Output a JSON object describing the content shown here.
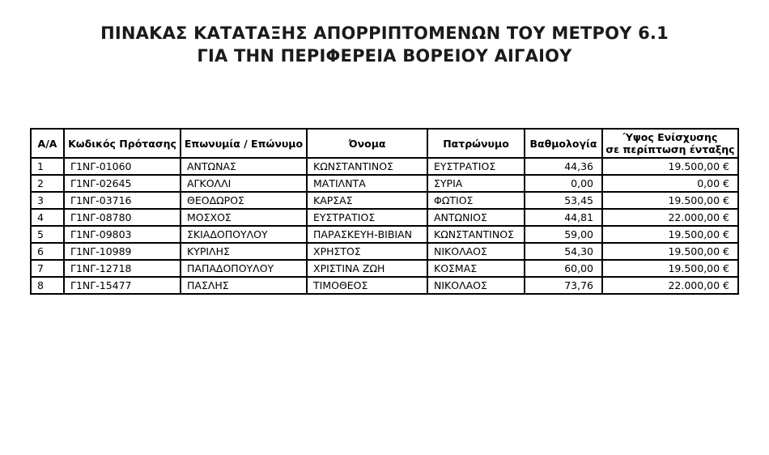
{
  "document": {
    "title_line1": "ΠΙΝΑΚΑΣ ΚΑΤΑΤΑΞΗΣ ΑΠΟΡΡΙΠΤΟΜΕΝΩΝ ΤΟΥ ΜΕΤΡΟΥ 6.1",
    "title_line2": "ΓΙΑ ΤΗΝ ΠΕΡΙΦΕΡΕΙΑ ΒΟΡΕΙΟΥ ΑΙΓΑΙΟΥ"
  },
  "table": {
    "headers": {
      "aa": "Α/Α",
      "code": "Κωδικός Πρότασης",
      "surname": "Επωνυμία / Επώνυμο",
      "name": "Όνομα",
      "patronym": "Πατρώνυμο",
      "score": "Βαθμολογία",
      "amount_line1": "Ύψος Ενίσχυσης",
      "amount_line2": "σε περίπτωση ένταξης"
    },
    "rows": [
      {
        "aa": "1",
        "code": "Γ1ΝΓ-01060",
        "surname": "ΑΝΤΩΝΑΣ",
        "name": "ΚΩΝΣΤΑΝΤΙΝΟΣ",
        "patronym": "ΕΥΣΤΡΑΤΙΟΣ",
        "score": "44,36",
        "amount": "19.500,00 €"
      },
      {
        "aa": "2",
        "code": "Γ1ΝΓ-02645",
        "surname": "ΑΓΚΟΛΛΙ",
        "name": "ΜΑΤΙΛΝΤΑ",
        "patronym": "ΣΥΡΙΑ",
        "score": "0,00",
        "amount": "0,00 €"
      },
      {
        "aa": "3",
        "code": "Γ1ΝΓ-03716",
        "surname": "ΘΕΟΔΩΡΟΣ",
        "name": "ΚΑΡΣΑΣ",
        "patronym": "ΦΩΤΙΟΣ",
        "score": "53,45",
        "amount": "19.500,00 €"
      },
      {
        "aa": "4",
        "code": "Γ1ΝΓ-08780",
        "surname": "ΜΟΣΧΟΣ",
        "name": "ΕΥΣΤΡΑΤΙΟΣ",
        "patronym": "ΑΝΤΩΝΙΟΣ",
        "score": "44,81",
        "amount": "22.000,00 €"
      },
      {
        "aa": "5",
        "code": "Γ1ΝΓ-09803",
        "surname": "ΣΚΙΑΔΟΠΟΥΛΟΥ",
        "name": "ΠΑΡΑΣΚΕΥΗ-ΒΙΒΙΑΝ",
        "patronym": "ΚΩΝΣΤΑΝΤΙΝΟΣ",
        "score": "59,00",
        "amount": "19.500,00 €"
      },
      {
        "aa": "6",
        "code": "Γ1ΝΓ-10989",
        "surname": "ΚΥΡΙΛΗΣ",
        "name": "ΧΡΗΣΤΟΣ",
        "patronym": "ΝΙΚΟΛΑΟΣ",
        "score": "54,30",
        "amount": "19.500,00 €"
      },
      {
        "aa": "7",
        "code": "Γ1ΝΓ-12718",
        "surname": "ΠΑΠΑΔΟΠΟΥΛΟΥ",
        "name": "ΧΡΙΣΤΙΝΑ ΖΩΗ",
        "patronym": "ΚΟΣΜΑΣ",
        "score": "60,00",
        "amount": "19.500,00 €"
      },
      {
        "aa": "8",
        "code": "Γ1ΝΓ-15477",
        "surname": "ΠΑΣΛΗΣ",
        "name": "ΤΙΜΟΘΕΟΣ",
        "patronym": "ΝΙΚΟΛΑΟΣ",
        "score": "73,76",
        "amount": "22.000,00 €"
      }
    ]
  },
  "colors": {
    "text": "#000000",
    "border": "#000000",
    "background": "#ffffff"
  }
}
